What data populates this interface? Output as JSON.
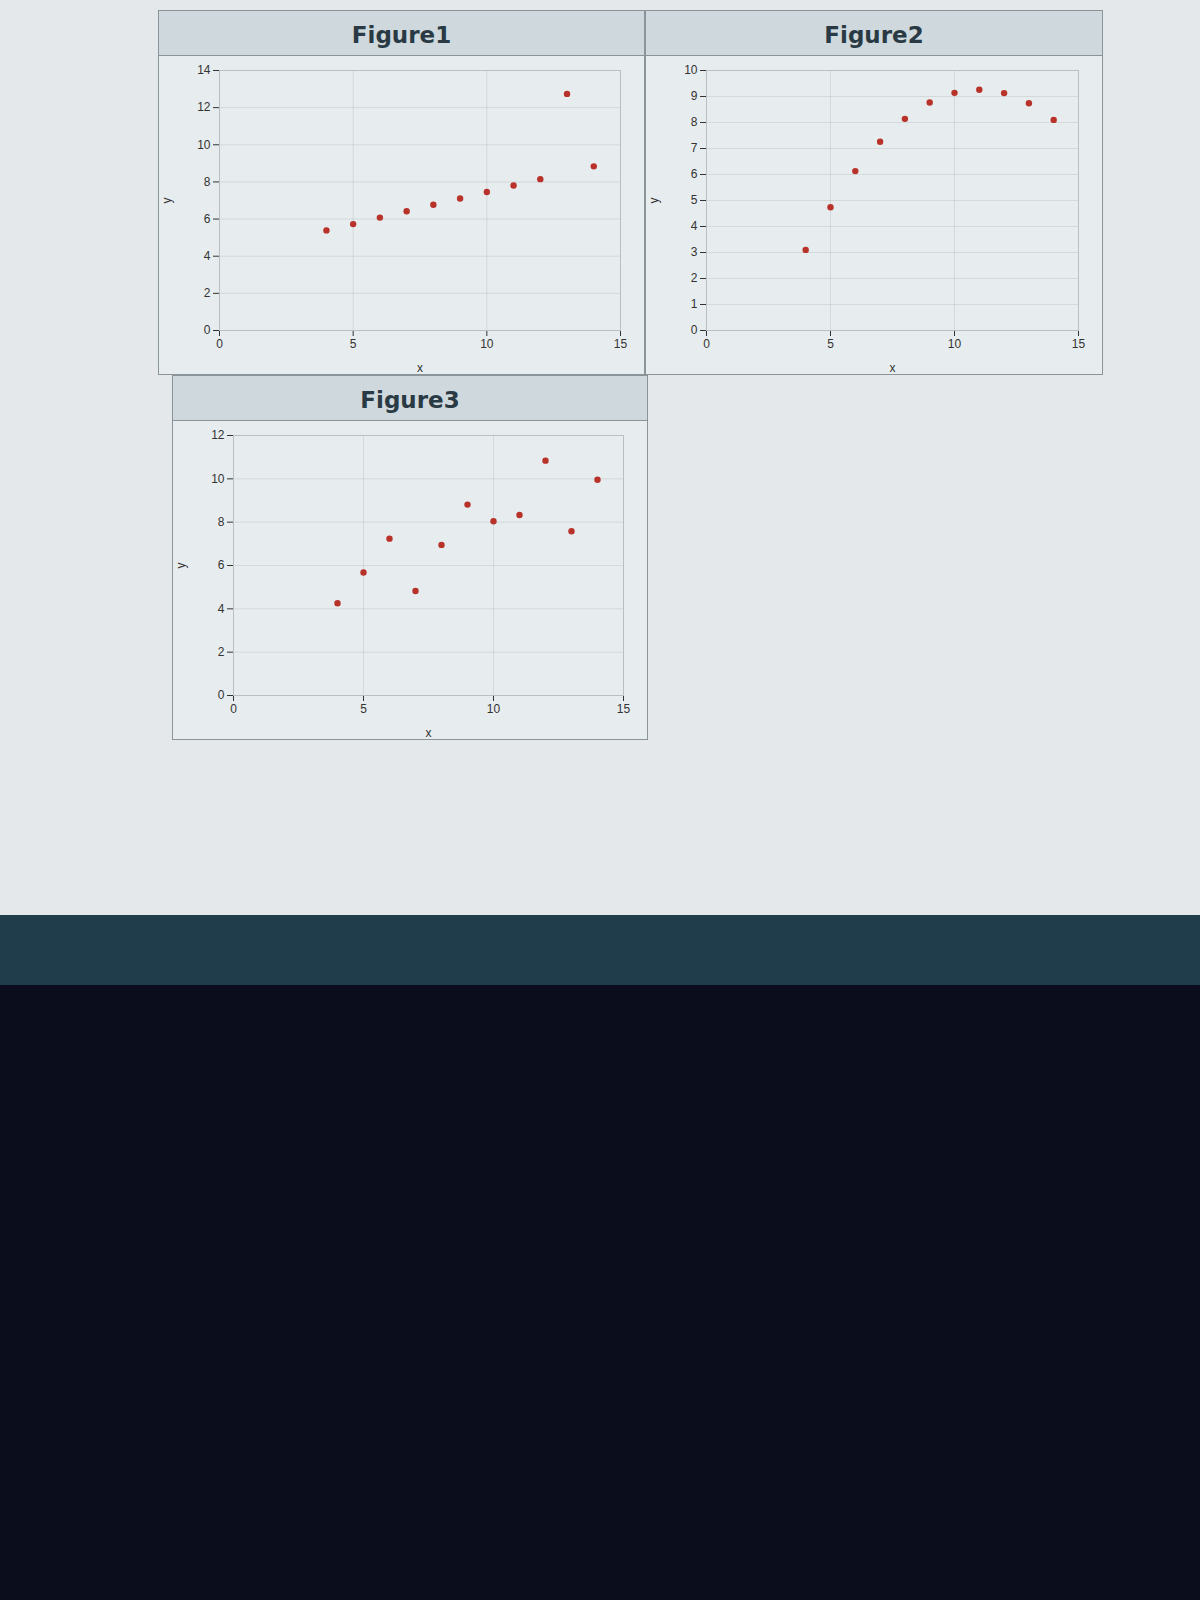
{
  "chart_data": [
    {
      "type": "scatter",
      "title": "Figure1",
      "xlabel": "x",
      "ylabel": "y",
      "color": "#b8322a",
      "grid": true,
      "x": [
        10,
        8,
        13,
        9,
        11,
        14,
        6,
        4,
        12,
        7,
        5
      ],
      "values": [
        7.46,
        6.77,
        12.74,
        7.11,
        7.81,
        8.84,
        6.08,
        5.39,
        8.15,
        6.42,
        5.73
      ],
      "xlim": [
        0,
        15
      ],
      "xticks": [
        0,
        5,
        10,
        15
      ],
      "ylim": [
        0,
        14
      ],
      "yticks": [
        0,
        2,
        4,
        6,
        8,
        10,
        12,
        14
      ]
    },
    {
      "type": "scatter",
      "title": "Figure2",
      "xlabel": "x",
      "ylabel": "y",
      "color": "#b8322a",
      "grid": true,
      "x": [
        10,
        8,
        13,
        9,
        11,
        14,
        6,
        4,
        12,
        7,
        5
      ],
      "values": [
        9.14,
        8.14,
        8.74,
        8.77,
        9.26,
        8.1,
        6.13,
        3.1,
        9.13,
        7.26,
        4.74
      ],
      "xlim": [
        0,
        15
      ],
      "xticks": [
        0,
        5,
        10,
        15
      ],
      "ylim": [
        0,
        10
      ],
      "yticks": [
        0,
        1,
        2,
        3,
        4,
        5,
        6,
        7,
        8,
        9,
        10
      ]
    },
    {
      "type": "scatter",
      "title": "Figure3",
      "xlabel": "x",
      "ylabel": "y",
      "color": "#b8322a",
      "grid": true,
      "x": [
        10,
        8,
        13,
        9,
        11,
        14,
        6,
        4,
        12,
        7,
        5
      ],
      "values": [
        8.04,
        6.95,
        7.58,
        8.81,
        8.33,
        9.96,
        7.24,
        4.26,
        10.84,
        4.82,
        5.68
      ],
      "xlim": [
        0,
        15
      ],
      "xticks": [
        0,
        5,
        10,
        15
      ],
      "ylim": [
        0,
        12
      ],
      "yticks": [
        0,
        2,
        4,
        6,
        8,
        10,
        12
      ]
    }
  ]
}
